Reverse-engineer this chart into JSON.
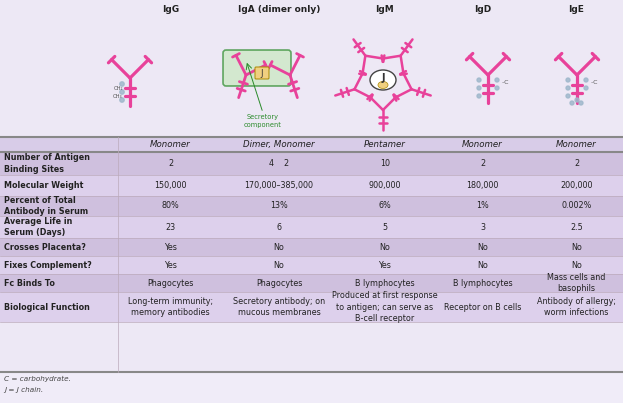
{
  "headers": [
    "IgG",
    "IgA (dimer only)",
    "IgM",
    "IgD",
    "IgE"
  ],
  "subheaders": [
    "Monomer",
    "Dimer, Monomer",
    "Pentamer",
    "Monomer",
    "Monomer"
  ],
  "rows": [
    {
      "label": "Number of Antigen\nBinding Sites",
      "values": [
        "2",
        "4    2",
        "10",
        "2",
        "2"
      ]
    },
    {
      "label": "Molecular Weight",
      "values": [
        "150,000",
        "170,000–385,000",
        "900,000",
        "180,000",
        "200,000"
      ]
    },
    {
      "label": "Percent of Total\nAntibody in Serum",
      "values": [
        "80%",
        "13%",
        "6%",
        "1%",
        "0.002%"
      ]
    },
    {
      "label": "Average Life in\nSerum (Days)",
      "values": [
        "23",
        "6",
        "5",
        "3",
        "2.5"
      ]
    },
    {
      "label": "Crosses Placenta?",
      "values": [
        "Yes",
        "No",
        "No",
        "No",
        "No"
      ]
    },
    {
      "label": "Fixes Complement?",
      "values": [
        "Yes",
        "No",
        "Yes",
        "No",
        "No"
      ]
    },
    {
      "label": "Fc Binds To",
      "values": [
        "Phagocytes",
        "Phagocytes",
        "B lymphocytes",
        "B lymphocytes",
        "Mass cells and\nbasophils"
      ]
    },
    {
      "label": "Biological Function",
      "values": [
        "Long-term immunity;\nmemory antibodies",
        "Secretory antibody; on\nmucous membranes",
        "Produced at first response\nto antigen; can serve as\nB-cell receptor",
        "Receptor on B cells",
        "Antibody of allergy;\nworm infections"
      ]
    }
  ],
  "footnotes": [
    "C = carbohydrate.",
    "J = J chain."
  ],
  "pink": "#e8429a",
  "dot_blue": "#a0b8cc",
  "green": "#2a8a2a",
  "bg_top": "#ede8f5",
  "bg_subheader": "#d8cce8",
  "bg_row_a": "#cfc0de",
  "bg_row_b": "#ddd0ec",
  "bg_footnote": "#f0ecf8",
  "text_dark": "#222222",
  "line_heavy": "#888888",
  "line_light": "#bbaabb"
}
